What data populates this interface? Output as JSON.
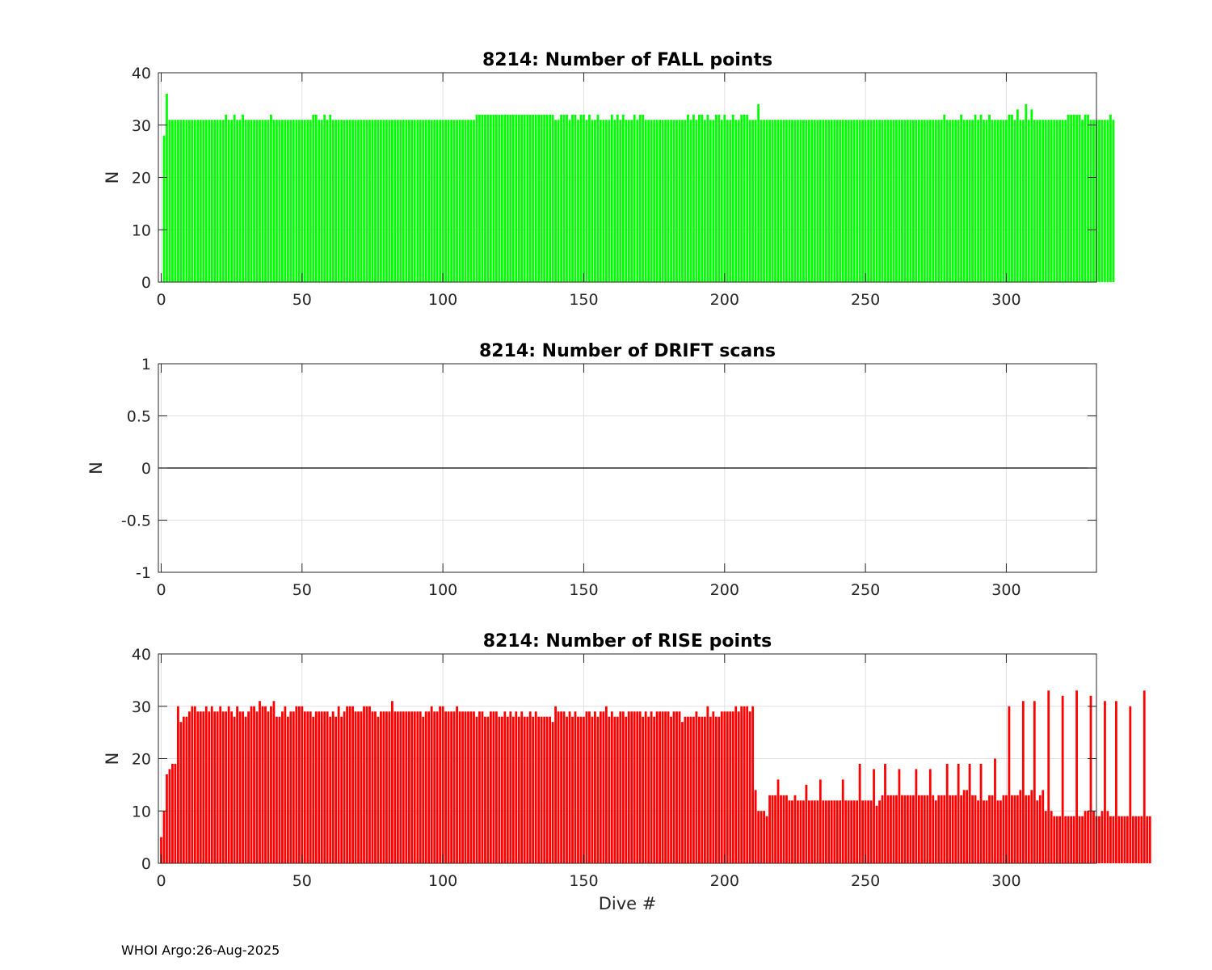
{
  "footer": "WHOI Argo:26-Aug-2025",
  "colors": {
    "fall": "#00ff00",
    "rise": "#ff0000",
    "grid": "#e0e0e0",
    "axis": "#262626"
  },
  "chart_data": [
    {
      "type": "bar",
      "title": "8214: Number of FALL points",
      "xlabel": "",
      "ylabel": "N",
      "xlim": [
        -1,
        332
      ],
      "ylim": [
        0,
        40
      ],
      "xticks": [
        0,
        50,
        100,
        150,
        200,
        250,
        300
      ],
      "yticks": [
        0,
        10,
        20,
        30,
        40
      ],
      "xtick_labels": [
        "0",
        "50",
        "100",
        "150",
        "200",
        "250",
        "300"
      ],
      "ytick_labels": [
        "0",
        "10",
        "20",
        "30",
        "40"
      ],
      "grid": true,
      "color": "#00ff00",
      "x_start": 1,
      "values": [
        28,
        36,
        31,
        31,
        31,
        31,
        31,
        31,
        31,
        31,
        31,
        31,
        31,
        31,
        31,
        31,
        31,
        31,
        31,
        31,
        31,
        31,
        32,
        31,
        31,
        32,
        31,
        31,
        32,
        31,
        31,
        31,
        31,
        31,
        31,
        31,
        31,
        31,
        32,
        31,
        31,
        31,
        31,
        31,
        31,
        31,
        31,
        31,
        31,
        31,
        31,
        31,
        31,
        32,
        32,
        31,
        31,
        32,
        31,
        32,
        31,
        31,
        31,
        31,
        31,
        31,
        31,
        31,
        31,
        31,
        31,
        31,
        31,
        31,
        31,
        31,
        31,
        31,
        31,
        31,
        31,
        31,
        31,
        31,
        31,
        31,
        31,
        31,
        31,
        31,
        31,
        31,
        31,
        31,
        31,
        31,
        31,
        31,
        31,
        31,
        31,
        31,
        31,
        31,
        31,
        31,
        31,
        31,
        31,
        31,
        31,
        32,
        32,
        32,
        32,
        32,
        32,
        32,
        32,
        32,
        32,
        32,
        32,
        32,
        32,
        32,
        32,
        32,
        32,
        32,
        32,
        32,
        32,
        32,
        32,
        32,
        32,
        32,
        32,
        31,
        31,
        32,
        32,
        32,
        31,
        32,
        32,
        31,
        32,
        32,
        31,
        32,
        31,
        31,
        32,
        31,
        31,
        31,
        31,
        32,
        31,
        32,
        31,
        32,
        31,
        31,
        31,
        32,
        31,
        32,
        32,
        31,
        31,
        31,
        31,
        31,
        31,
        31,
        31,
        31,
        31,
        31,
        31,
        31,
        31,
        31,
        32,
        31,
        32,
        31,
        32,
        32,
        31,
        32,
        31,
        31,
        32,
        32,
        31,
        32,
        31,
        31,
        32,
        31,
        31,
        32,
        32,
        32,
        31,
        31,
        31,
        34,
        31,
        31,
        31,
        31,
        31,
        31,
        31,
        31,
        31,
        31,
        31,
        31,
        31,
        31,
        31,
        31,
        31,
        31,
        31,
        31,
        31,
        31,
        31,
        31,
        31,
        31,
        31,
        31,
        31,
        31,
        31,
        31,
        31,
        31,
        31,
        31,
        31,
        31,
        31,
        31,
        31,
        31,
        31,
        31,
        31,
        31,
        31,
        31,
        31,
        31,
        31,
        31,
        31,
        31,
        31,
        31,
        31,
        31,
        31,
        31,
        31,
        31,
        31,
        31,
        31,
        32,
        31,
        31,
        31,
        31,
        31,
        32,
        31,
        31,
        31,
        31,
        32,
        31,
        32,
        31,
        31,
        32,
        31,
        31,
        31,
        31,
        31,
        31,
        32,
        32,
        31,
        33,
        31,
        31,
        34,
        31,
        33,
        31,
        31,
        31,
        31,
        31,
        31,
        31,
        31,
        31,
        31,
        31,
        31,
        32,
        32,
        32,
        32,
        32,
        31,
        32,
        32,
        31,
        31,
        31,
        31,
        31,
        31,
        31,
        32,
        31
      ]
    },
    {
      "type": "bar",
      "title": "8214: Number of DRIFT scans",
      "xlabel": "",
      "ylabel": "N",
      "xlim": [
        -1,
        332
      ],
      "ylim": [
        -1,
        1
      ],
      "xticks": [
        0,
        50,
        100,
        150,
        200,
        250,
        300
      ],
      "yticks": [
        -1,
        -0.5,
        0,
        0.5,
        1
      ],
      "xtick_labels": [
        "0",
        "50",
        "100",
        "150",
        "200",
        "250",
        "300"
      ],
      "ytick_labels": [
        "-1",
        "-0.5",
        "0",
        "0.5",
        "1"
      ],
      "grid": true,
      "color": "#000000",
      "x_start": 1,
      "values": [],
      "zero_line": true
    },
    {
      "type": "bar",
      "title": "8214: Number of RISE points",
      "xlabel": "Dive #",
      "ylabel": "N",
      "xlim": [
        -1,
        332
      ],
      "ylim": [
        0,
        40
      ],
      "xticks": [
        0,
        50,
        100,
        150,
        200,
        250,
        300
      ],
      "yticks": [
        0,
        10,
        20,
        30,
        40
      ],
      "xtick_labels": [
        "0",
        "50",
        "100",
        "150",
        "200",
        "250",
        "300"
      ],
      "ytick_labels": [
        "0",
        "10",
        "20",
        "30",
        "40"
      ],
      "grid": true,
      "color": "#ff0000",
      "x_start": 0,
      "values": [
        5,
        10,
        17,
        18,
        19,
        19,
        30,
        27,
        28,
        28,
        29,
        30,
        30,
        29,
        29,
        29,
        30,
        29,
        30,
        29,
        29,
        30,
        29,
        29,
        30,
        29,
        28,
        30,
        29,
        29,
        28,
        29,
        30,
        30,
        29,
        31,
        30,
        30,
        29,
        30,
        31,
        28,
        28,
        29,
        30,
        28,
        29,
        29,
        30,
        30,
        30,
        29,
        29,
        29,
        28,
        29,
        29,
        29,
        29,
        29,
        28,
        29,
        28,
        30,
        28,
        29,
        30,
        30,
        30,
        29,
        29,
        29,
        30,
        30,
        30,
        29,
        29,
        28,
        29,
        29,
        29,
        29,
        31,
        29,
        29,
        29,
        29,
        29,
        29,
        29,
        29,
        29,
        29,
        28,
        29,
        29,
        30,
        29,
        29,
        30,
        30,
        29,
        29,
        29,
        29,
        30,
        29,
        29,
        29,
        29,
        29,
        29,
        28,
        29,
        29,
        28,
        28,
        29,
        29,
        29,
        28,
        28,
        29,
        28,
        29,
        28,
        29,
        28,
        29,
        28,
        28,
        29,
        28,
        29,
        28,
        28,
        28,
        28,
        28,
        27,
        30,
        29,
        29,
        29,
        28,
        29,
        28,
        29,
        28,
        28,
        28,
        29,
        29,
        28,
        29,
        28,
        29,
        29,
        30,
        28,
        29,
        28,
        28,
        29,
        29,
        28,
        29,
        29,
        29,
        29,
        29,
        28,
        29,
        28,
        29,
        28,
        29,
        29,
        29,
        29,
        29,
        28,
        29,
        29,
        29,
        27,
        28,
        28,
        28,
        28,
        29,
        28,
        28,
        28,
        30,
        28,
        29,
        28,
        28,
        29,
        29,
        29,
        29,
        29,
        30,
        29,
        30,
        30,
        30,
        29,
        30,
        14,
        10,
        10,
        10,
        9,
        13,
        13,
        13,
        16,
        13,
        13,
        13,
        12,
        12,
        13,
        12,
        12,
        12,
        15,
        12,
        12,
        12,
        12,
        16,
        12,
        12,
        12,
        12,
        12,
        12,
        12,
        16,
        12,
        12,
        12,
        12,
        12,
        19,
        12,
        12,
        12,
        12,
        18,
        11,
        12,
        13,
        19,
        13,
        13,
        13,
        13,
        18,
        13,
        13,
        13,
        13,
        13,
        18,
        13,
        13,
        13,
        13,
        18,
        13,
        12,
        13,
        13,
        13,
        19,
        13,
        13,
        13,
        19,
        13,
        14,
        14,
        19,
        13,
        13,
        12,
        19,
        12,
        12,
        13,
        13,
        20,
        12,
        12,
        13,
        13,
        30,
        13,
        13,
        13,
        14,
        31,
        13,
        13,
        14,
        31,
        12,
        13,
        14,
        10,
        33,
        10,
        9,
        9,
        9,
        32,
        9,
        9,
        9,
        9,
        33,
        9,
        9,
        10,
        10,
        32,
        10,
        9,
        9,
        10,
        31,
        10,
        9,
        9,
        31,
        9,
        9,
        9,
        9,
        30,
        9,
        9,
        9,
        9,
        33,
        9,
        9
      ]
    }
  ]
}
